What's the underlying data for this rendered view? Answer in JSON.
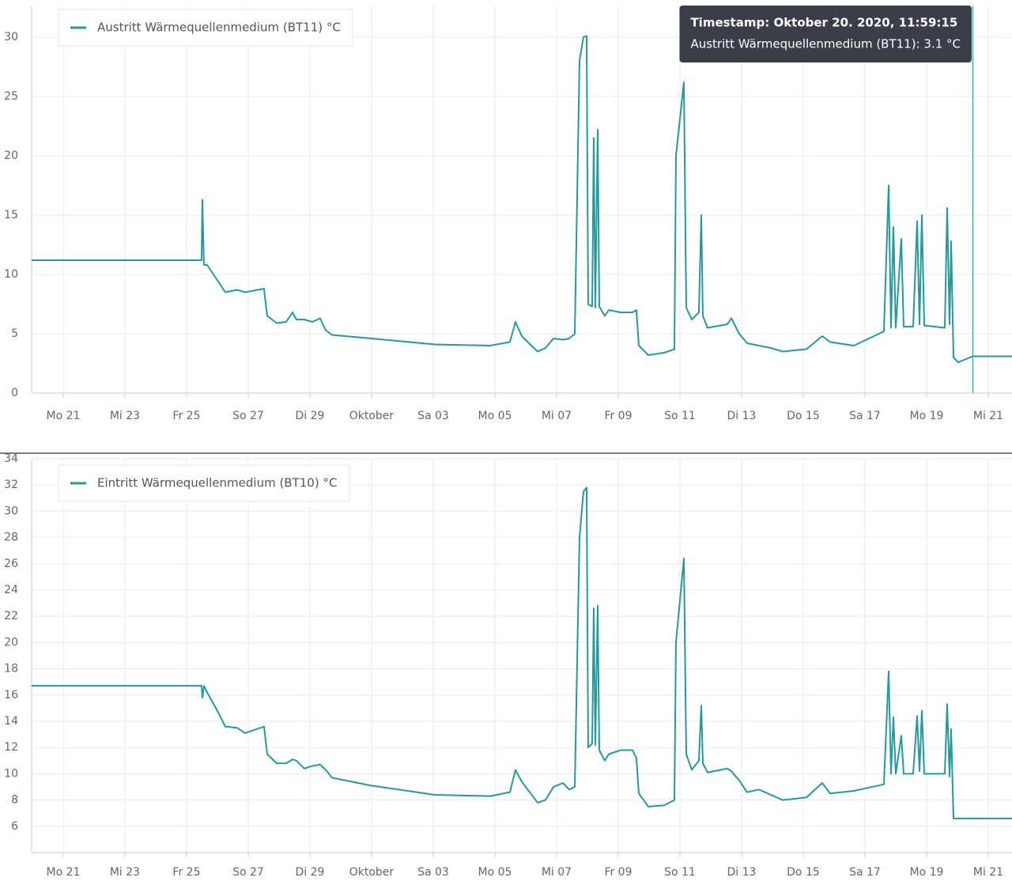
{
  "chart_data": [
    {
      "type": "line",
      "x": [
        "2020-09-19T23:25",
        "2020-09-25T11:42",
        "2020-09-25T12:18",
        "2020-09-25T13:32",
        "2020-09-25T16:00",
        "2020-09-26T00:00",
        "2020-09-26T06:09",
        "2020-09-26T15:23",
        "2020-09-26T21:32",
        "2020-09-27T12:18",
        "2020-09-27T14:46",
        "2020-09-27T22:09",
        "2020-09-28T05:32",
        "2020-09-28T10:28",
        "2020-09-28T13:32",
        "2020-09-28T19:42",
        "2020-09-29T01:51",
        "2020-09-29T08:00",
        "2020-09-29T12:18",
        "2020-09-29T17:14",
        "2020-10-01T00:00",
        "2020-10-03T01:14",
        "2020-10-04T20:18",
        "2020-10-05T11:42",
        "2020-10-05T16:00",
        "2020-10-05T20:55",
        "2020-10-06T09:14",
        "2020-10-06T15:23",
        "2020-10-06T21:32",
        "2020-10-07T04:55",
        "2020-10-07T09:51",
        "2020-10-07T14:09",
        "2020-10-07T17:51",
        "2020-10-07T20:55",
        "2020-10-07T23:23",
        "2020-10-08T00:37",
        "2020-10-08T03:42",
        "2020-10-08T04:55",
        "2020-10-08T06:09",
        "2020-10-08T08:00",
        "2020-10-08T09:14",
        "2020-10-08T13:32",
        "2020-10-08T16:37",
        "2020-10-09T01:51",
        "2020-10-09T11:05",
        "2020-10-09T14:09",
        "2020-10-09T16:00",
        "2020-10-09T23:23",
        "2020-10-10T11:42",
        "2020-10-10T19:42",
        "2020-10-10T20:55",
        "2020-10-11T03:05",
        "2020-10-11T04:55",
        "2020-10-11T09:14",
        "2020-10-11T14:46",
        "2020-10-11T16:37",
        "2020-10-11T17:51",
        "2020-10-11T21:32",
        "2020-10-12T12:55",
        "2020-10-12T16:00",
        "2020-10-12T22:09",
        "2020-10-13T04:18",
        "2020-10-13T13:32",
        "2020-10-13T22:46",
        "2020-10-14T08:00",
        "2020-10-15T02:28",
        "2020-10-15T14:46",
        "2020-10-15T20:55",
        "2020-10-16T15:23",
        "2020-10-17T14:46",
        "2020-10-17T18:28",
        "2020-10-17T20:18",
        "2020-10-17T22:09",
        "2020-10-18T00:00",
        "2020-10-18T04:18",
        "2020-10-18T06:09",
        "2020-10-18T13:32",
        "2020-10-18T16:37",
        "2020-10-18T18:28",
        "2020-10-18T20:18",
        "2020-10-18T22:09",
        "2020-10-19T14:09",
        "2020-10-19T16:00",
        "2020-10-19T17:51",
        "2020-10-19T19:05",
        "2020-10-19T20:55",
        "2020-10-20T00:37",
        "2020-10-20T12:00",
        "2020-10-21T18:28"
      ],
      "series": [
        {
          "name": "Austritt Wärmequellenmedium (BT11) °C",
          "color": "#26999b",
          "values": [
            11.2,
            11.2,
            16.3,
            10.8,
            10.8,
            9.5,
            8.5,
            8.7,
            8.5,
            8.8,
            6.5,
            5.9,
            6.0,
            6.8,
            6.2,
            6.2,
            6.0,
            6.3,
            5.3,
            4.9,
            4.6,
            4.1,
            4.0,
            4.3,
            6.0,
            4.8,
            3.5,
            3.8,
            4.6,
            4.5,
            4.6,
            5.0,
            28.0,
            30.0,
            30.1,
            7.5,
            7.3,
            21.5,
            7.2,
            22.2,
            7.3,
            6.5,
            7.0,
            6.8,
            6.8,
            7.0,
            4.0,
            3.2,
            3.4,
            3.7,
            20.0,
            26.2,
            7.2,
            6.2,
            6.8,
            15.0,
            6.5,
            5.5,
            5.8,
            6.3,
            5.0,
            4.2,
            4.0,
            3.8,
            3.5,
            3.7,
            4.8,
            4.3,
            4.0,
            5.2,
            17.5,
            5.5,
            14.0,
            5.5,
            13.0,
            5.6,
            5.6,
            14.5,
            5.8,
            15.0,
            5.7,
            5.5,
            15.6,
            5.8,
            12.8,
            3.0,
            2.6,
            3.1,
            3.1
          ]
        }
      ],
      "xlim": [
        "2020-09-19T23:25",
        "2020-10-21T18:28"
      ],
      "xticks": [
        {
          "value": "2020-09-21",
          "label": "Mo 21"
        },
        {
          "value": "2020-09-23",
          "label": "Mi 23"
        },
        {
          "value": "2020-09-25",
          "label": "Fr 25"
        },
        {
          "value": "2020-09-27",
          "label": "So 27"
        },
        {
          "value": "2020-09-29",
          "label": "Di 29"
        },
        {
          "value": "2020-10-01",
          "label": "Oktober"
        },
        {
          "value": "2020-10-03",
          "label": "Sa 03"
        },
        {
          "value": "2020-10-05",
          "label": "Mo 05"
        },
        {
          "value": "2020-10-07",
          "label": "Mi 07"
        },
        {
          "value": "2020-10-09",
          "label": "Fr 09"
        },
        {
          "value": "2020-10-11",
          "label": "So 11"
        },
        {
          "value": "2020-10-13",
          "label": "Di 13"
        },
        {
          "value": "2020-10-15",
          "label": "Do 15"
        },
        {
          "value": "2020-10-17",
          "label": "Sa 17"
        },
        {
          "value": "2020-10-19",
          "label": "Mo 19"
        },
        {
          "value": "2020-10-21",
          "label": "Mi 21"
        }
      ],
      "ylim": [
        0,
        32.6
      ],
      "yticks": [
        0,
        5,
        10,
        15,
        20,
        25,
        30
      ],
      "grid": true,
      "legend": "top-left",
      "tooltip": {
        "title": "Timestamp: Oktober 20. 2020, 11:59:15",
        "text": "Austritt Wärmequellenmedium (BT11): 3.1 °C",
        "x": "2020-10-20T11:59:15"
      }
    },
    {
      "type": "line",
      "x": [
        "2020-09-19T23:25",
        "2020-09-25T11:42",
        "2020-09-25T12:18",
        "2020-09-25T13:32",
        "2020-09-25T16:00",
        "2020-09-26T00:00",
        "2020-09-26T06:09",
        "2020-09-26T15:23",
        "2020-09-26T21:32",
        "2020-09-27T12:18",
        "2020-09-27T14:46",
        "2020-09-27T22:09",
        "2020-09-28T05:32",
        "2020-09-28T10:28",
        "2020-09-28T13:32",
        "2020-09-28T19:42",
        "2020-09-29T01:51",
        "2020-09-29T08:00",
        "2020-09-29T12:18",
        "2020-09-29T17:14",
        "2020-10-01T00:00",
        "2020-10-03T01:14",
        "2020-10-04T20:18",
        "2020-10-05T11:42",
        "2020-10-05T16:00",
        "2020-10-05T20:55",
        "2020-10-06T09:14",
        "2020-10-06T15:23",
        "2020-10-06T21:32",
        "2020-10-07T04:55",
        "2020-10-07T09:51",
        "2020-10-07T14:09",
        "2020-10-07T17:51",
        "2020-10-07T20:55",
        "2020-10-07T23:23",
        "2020-10-08T00:37",
        "2020-10-08T03:42",
        "2020-10-08T04:55",
        "2020-10-08T06:09",
        "2020-10-08T08:00",
        "2020-10-08T09:14",
        "2020-10-08T13:32",
        "2020-10-08T16:37",
        "2020-10-09T01:51",
        "2020-10-09T11:05",
        "2020-10-09T14:09",
        "2020-10-09T16:00",
        "2020-10-09T23:23",
        "2020-10-10T11:42",
        "2020-10-10T19:42",
        "2020-10-10T20:55",
        "2020-10-11T03:05",
        "2020-10-11T04:55",
        "2020-10-11T09:14",
        "2020-10-11T14:46",
        "2020-10-11T16:37",
        "2020-10-11T17:51",
        "2020-10-11T21:32",
        "2020-10-12T12:55",
        "2020-10-12T16:00",
        "2020-10-12T22:09",
        "2020-10-13T04:18",
        "2020-10-13T13:32",
        "2020-10-13T22:46",
        "2020-10-14T08:00",
        "2020-10-15T02:28",
        "2020-10-15T14:46",
        "2020-10-15T20:55",
        "2020-10-16T15:23",
        "2020-10-17T14:46",
        "2020-10-17T18:28",
        "2020-10-17T20:18",
        "2020-10-17T22:09",
        "2020-10-18T00:00",
        "2020-10-18T04:18",
        "2020-10-18T06:09",
        "2020-10-18T13:32",
        "2020-10-18T16:37",
        "2020-10-18T18:28",
        "2020-10-18T20:18",
        "2020-10-18T22:09",
        "2020-10-19T14:09",
        "2020-10-19T16:00",
        "2020-10-19T17:51",
        "2020-10-19T19:05",
        "2020-10-19T20:55",
        "2020-10-20T00:37",
        "2020-10-20T12:00",
        "2020-10-21T18:28"
      ],
      "series": [
        {
          "name": "Eintritt Wärmequellenmedium (BT10) °C",
          "color": "#26999b",
          "values": [
            16.7,
            16.7,
            15.8,
            16.7,
            16.2,
            14.8,
            13.6,
            13.5,
            13.1,
            13.6,
            11.5,
            10.8,
            10.8,
            11.1,
            11.0,
            10.4,
            10.6,
            10.7,
            10.3,
            9.7,
            9.1,
            8.4,
            8.3,
            8.6,
            10.3,
            9.4,
            7.8,
            8.0,
            9.0,
            9.3,
            8.8,
            9.0,
            28.0,
            31.5,
            31.8,
            12.0,
            12.3,
            22.6,
            12.2,
            22.8,
            11.8,
            11.0,
            11.5,
            11.8,
            11.8,
            11.2,
            8.5,
            7.5,
            7.6,
            8.0,
            20.0,
            26.4,
            11.5,
            10.3,
            11.0,
            15.2,
            10.8,
            10.1,
            10.4,
            10.2,
            9.5,
            8.6,
            8.8,
            8.4,
            8.0,
            8.2,
            9.3,
            8.5,
            8.7,
            9.2,
            17.8,
            10.0,
            14.3,
            10.0,
            12.9,
            10.0,
            10.0,
            14.4,
            10.2,
            14.8,
            10.0,
            10.0,
            15.3,
            9.8,
            13.4,
            6.6,
            6.6,
            6.6,
            6.6
          ]
        }
      ],
      "xlim": [
        "2020-09-19T23:25",
        "2020-10-21T18:28"
      ],
      "xticks": [
        {
          "value": "2020-09-21",
          "label": "Mo 21"
        },
        {
          "value": "2020-09-23",
          "label": "Mi 23"
        },
        {
          "value": "2020-09-25",
          "label": "Fr 25"
        },
        {
          "value": "2020-09-27",
          "label": "So 27"
        },
        {
          "value": "2020-09-29",
          "label": "Di 29"
        },
        {
          "value": "2020-10-01",
          "label": "Oktober"
        },
        {
          "value": "2020-10-03",
          "label": "Sa 03"
        },
        {
          "value": "2020-10-05",
          "label": "Mo 05"
        },
        {
          "value": "2020-10-07",
          "label": "Mi 07"
        },
        {
          "value": "2020-10-09",
          "label": "Fr 09"
        },
        {
          "value": "2020-10-11",
          "label": "So 11"
        },
        {
          "value": "2020-10-13",
          "label": "Di 13"
        },
        {
          "value": "2020-10-15",
          "label": "Do 15"
        },
        {
          "value": "2020-10-17",
          "label": "Sa 17"
        },
        {
          "value": "2020-10-19",
          "label": "Mo 19"
        },
        {
          "value": "2020-10-21",
          "label": "Mi 21"
        }
      ],
      "ylim": [
        4,
        34
      ],
      "yticks": [
        6,
        8,
        10,
        12,
        14,
        16,
        18,
        20,
        22,
        24,
        26,
        28,
        30,
        32,
        34
      ],
      "grid": true,
      "legend": "top-left"
    }
  ]
}
